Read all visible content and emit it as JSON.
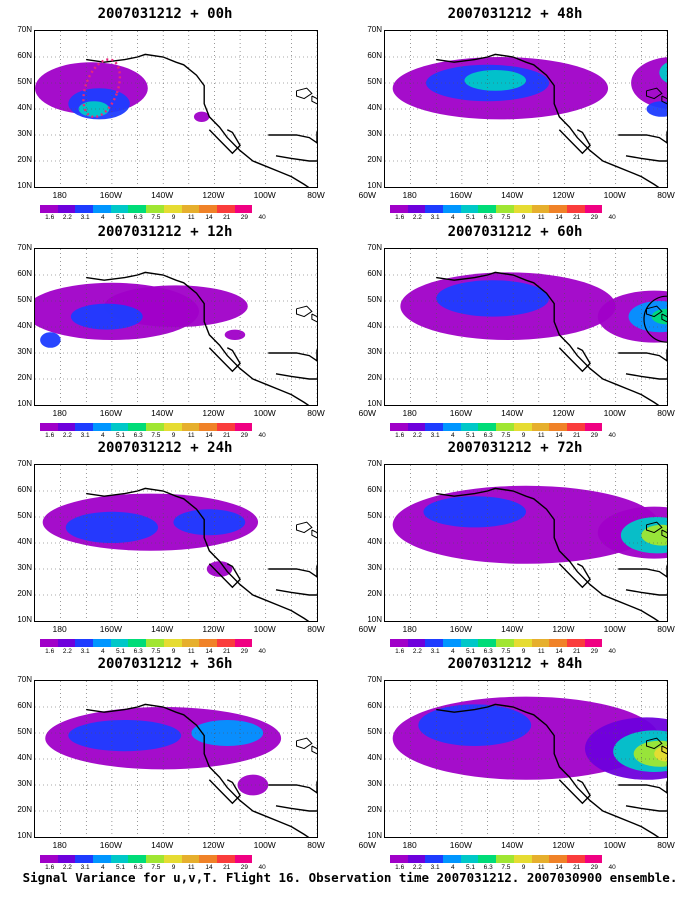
{
  "panels": [
    {
      "title": "2007031212 + 00h"
    },
    {
      "title": "2007031212 + 48h"
    },
    {
      "title": "2007031212 + 12h"
    },
    {
      "title": "2007031212 + 60h"
    },
    {
      "title": "2007031212 + 24h"
    },
    {
      "title": "2007031212 + 72h"
    },
    {
      "title": "2007031212 + 36h"
    },
    {
      "title": "2007031212 + 84h"
    }
  ],
  "y_labels": [
    "70N",
    "60N",
    "50N",
    "40N",
    "30N",
    "20N",
    "10N"
  ],
  "x_labels": [
    "180",
    "160W",
    "140W",
    "120W",
    "100W",
    "80W",
    "60W"
  ],
  "colorbar": {
    "labels": [
      "1.6",
      "2.2",
      "3.1",
      "4",
      "5.1",
      "6.3",
      "7.5",
      "9",
      "11",
      "14",
      "21",
      "29",
      "40"
    ],
    "colors": [
      "#a000c8",
      "#6e00dc",
      "#1e3cff",
      "#0096ff",
      "#00c8c8",
      "#00dc78",
      "#a0e632",
      "#e6dc32",
      "#e6af2d",
      "#f08228",
      "#fa3c3c",
      "#f00082"
    ]
  },
  "caption": "Signal Variance for u,v,T. Flight 16. Observation time 2007031212. 2007030900 ensemble."
}
